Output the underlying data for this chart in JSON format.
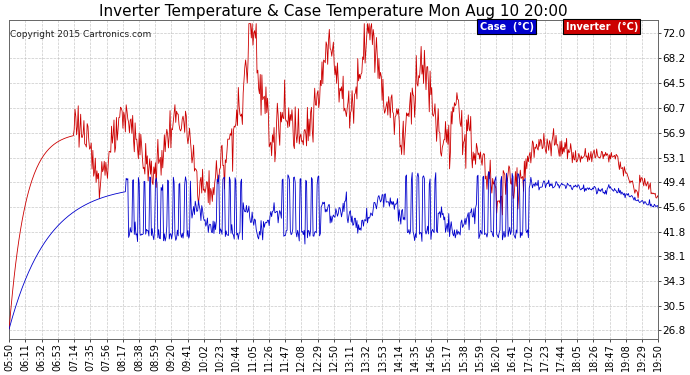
{
  "title": "Inverter Temperature & Case Temperature Mon Aug 10 20:00",
  "copyright": "Copyright 2015 Cartronics.com",
  "yticks": [
    26.8,
    30.5,
    34.3,
    38.1,
    41.8,
    45.6,
    49.4,
    53.1,
    56.9,
    60.7,
    64.5,
    68.2,
    72.0
  ],
  "ylim": [
    25.5,
    74.0
  ],
  "case_color": "#0000cc",
  "inverter_color": "#cc0000",
  "bg_color": "#ffffff",
  "grid_color": "#bbbbbb",
  "legend_case_bg": "#0000cc",
  "legend_inv_bg": "#cc0000",
  "title_fontsize": 11,
  "tick_fontsize": 7.5,
  "xtick_labels": [
    "05:50",
    "06:11",
    "06:32",
    "06:53",
    "07:14",
    "07:35",
    "07:56",
    "08:17",
    "08:38",
    "08:59",
    "09:20",
    "09:41",
    "10:02",
    "10:23",
    "10:44",
    "11:05",
    "11:26",
    "11:47",
    "12:08",
    "12:29",
    "12:50",
    "13:11",
    "13:32",
    "13:53",
    "14:14",
    "14:35",
    "14:56",
    "15:17",
    "15:38",
    "15:59",
    "16:20",
    "16:41",
    "17:02",
    "17:23",
    "17:44",
    "18:05",
    "18:26",
    "18:47",
    "19:08",
    "19:29",
    "19:50"
  ]
}
